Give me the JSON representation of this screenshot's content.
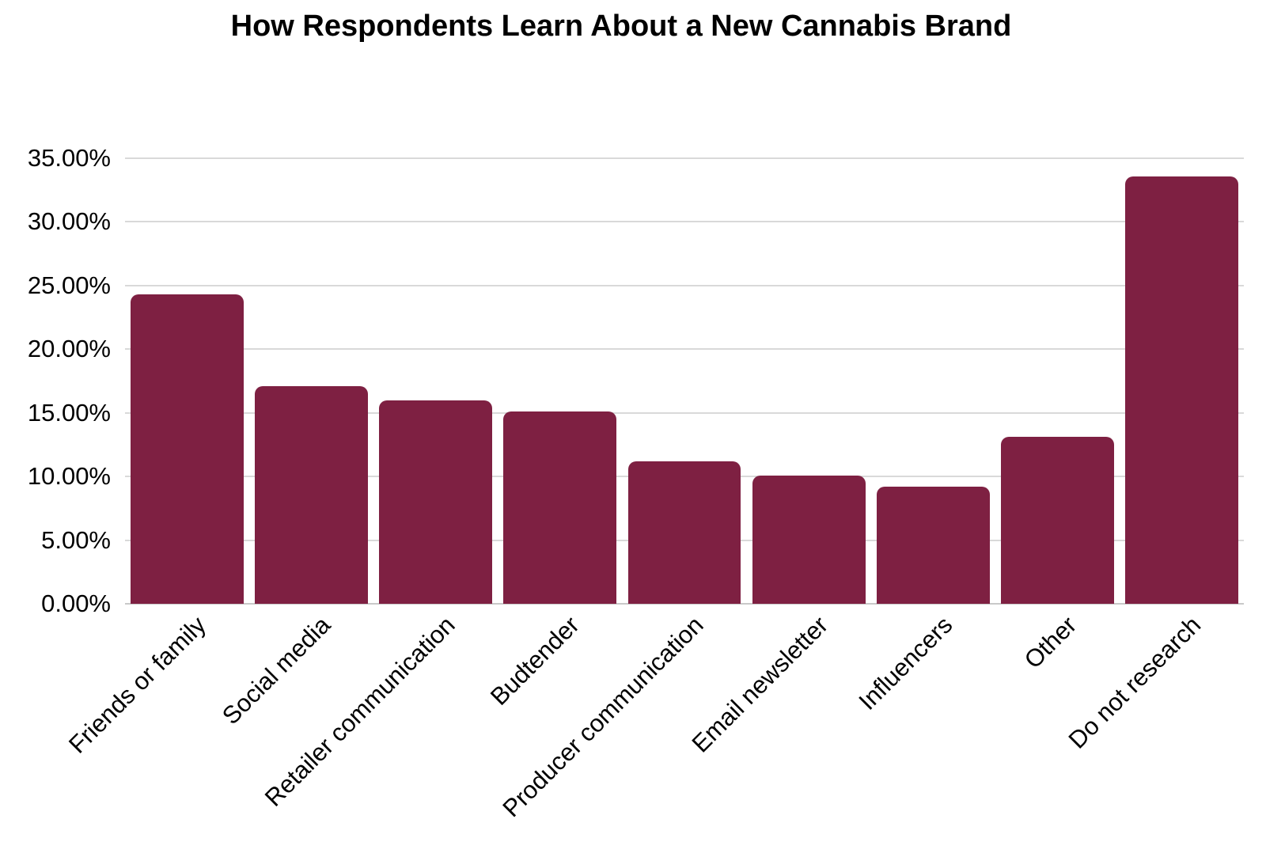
{
  "page": {
    "background": "#FFFFFF"
  },
  "chart_data": {
    "type": "bar",
    "title": "How Respondents Learn About a New Cannabis Brand",
    "categories": [
      "Friends or family",
      "Social media",
      "Retailer communication",
      "Budtender",
      "Producer communication",
      "Email newsletter",
      "Influencers",
      "Other",
      "Do not research"
    ],
    "values": [
      24.3,
      17.1,
      16.0,
      15.1,
      11.2,
      10.1,
      9.2,
      13.1,
      33.6
    ],
    "unit": "%",
    "xlabel": "",
    "ylabel": "",
    "ylim": [
      0,
      35
    ],
    "y_ticks": {
      "values": [
        0,
        5,
        10,
        15,
        20,
        25,
        30,
        35
      ],
      "labels": [
        "0.00%",
        "5.00%",
        "10.00%",
        "15.00%",
        "20.00%",
        "25.00%",
        "30.00%",
        "35.00%"
      ]
    },
    "grid": "horizontal",
    "legend": "none",
    "x_label_rotation_deg": 45,
    "bar_corner_radius_px": 10,
    "bar_color": "#7E2042",
    "gridline_color": "#D9D9D9",
    "axis_line_color": "#C9C9C9",
    "text_color": "#000000"
  }
}
